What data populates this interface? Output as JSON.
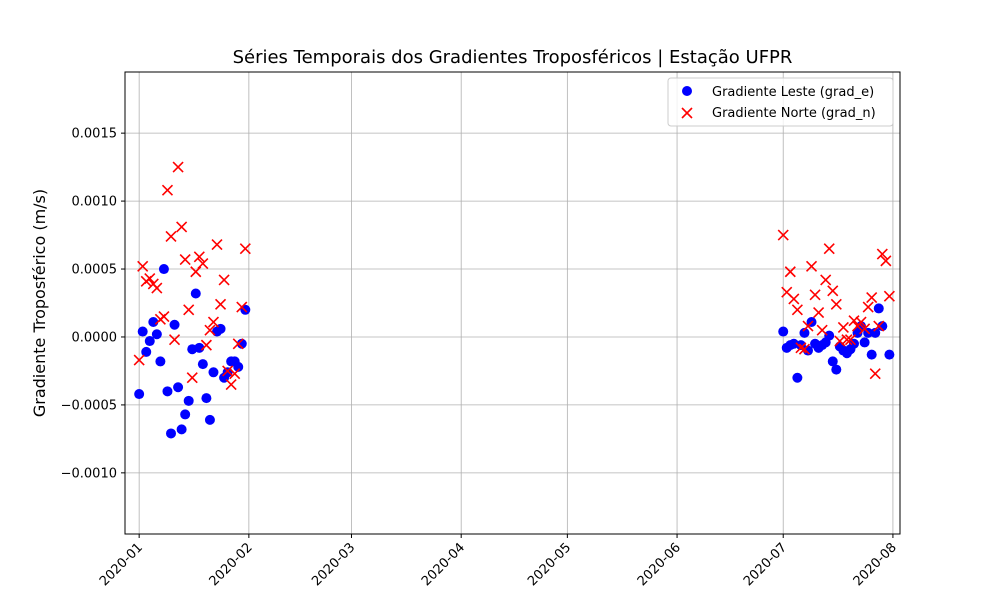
{
  "chart_data": {
    "type": "scatter",
    "title": "Séries Temporais dos Gradientes Troposféricos | Estação UFPR",
    "xlabel": "",
    "ylabel": "Gradiente Troposférico (m/s)",
    "x_range": [
      "2019-12-28",
      "2020-08-03"
    ],
    "ylim": [
      -0.00145,
      0.00195
    ],
    "x_ticks": [
      "2020-01",
      "2020-02",
      "2020-03",
      "2020-04",
      "2020-05",
      "2020-06",
      "2020-07",
      "2020-08"
    ],
    "y_ticks": [
      -0.001,
      -0.0005,
      0.0,
      0.0005,
      0.001,
      0.0015
    ],
    "y_tick_labels": [
      "−0.0010",
      "−0.0005",
      "0.0000",
      "0.0005",
      "0.0010",
      "0.0015"
    ],
    "grid": true,
    "legend_position": "top-right",
    "series": [
      {
        "name": "Gradiente Leste (grad_e)",
        "marker": "circle",
        "color": "#0000ff",
        "points": [
          [
            "2020-01-01",
            -0.00042
          ],
          [
            "2020-01-02",
            4e-05
          ],
          [
            "2020-01-03",
            -0.00011
          ],
          [
            "2020-01-04",
            -3e-05
          ],
          [
            "2020-01-05",
            0.00011
          ],
          [
            "2020-01-06",
            2e-05
          ],
          [
            "2020-01-07",
            -0.00018
          ],
          [
            "2020-01-08",
            0.0005
          ],
          [
            "2020-01-09",
            -0.0004
          ],
          [
            "2020-01-10",
            -0.00071
          ],
          [
            "2020-01-11",
            9e-05
          ],
          [
            "2020-01-12",
            -0.00037
          ],
          [
            "2020-01-13",
            -0.00068
          ],
          [
            "2020-01-14",
            -0.00057
          ],
          [
            "2020-01-15",
            -0.00047
          ],
          [
            "2020-01-16",
            -9e-05
          ],
          [
            "2020-01-17",
            0.00032
          ],
          [
            "2020-01-18",
            -8e-05
          ],
          [
            "2020-01-19",
            -0.0002
          ],
          [
            "2020-01-20",
            -0.00045
          ],
          [
            "2020-01-21",
            -0.00061
          ],
          [
            "2020-01-22",
            -0.00026
          ],
          [
            "2020-01-23",
            4e-05
          ],
          [
            "2020-01-24",
            6e-05
          ],
          [
            "2020-01-25",
            -0.0003
          ],
          [
            "2020-01-26",
            -0.00026
          ],
          [
            "2020-01-27",
            -0.00018
          ],
          [
            "2020-01-28",
            -0.00018
          ],
          [
            "2020-01-29",
            -0.00022
          ],
          [
            "2020-01-30",
            -5e-05
          ],
          [
            "2020-01-31",
            0.0002
          ],
          [
            "2020-07-01",
            4e-05
          ],
          [
            "2020-07-02",
            -8e-05
          ],
          [
            "2020-07-03",
            -6e-05
          ],
          [
            "2020-07-04",
            -5e-05
          ],
          [
            "2020-07-05",
            -0.0003
          ],
          [
            "2020-07-06",
            -6e-05
          ],
          [
            "2020-07-07",
            3e-05
          ],
          [
            "2020-07-08",
            -0.0001
          ],
          [
            "2020-07-09",
            0.00011
          ],
          [
            "2020-07-10",
            -5e-05
          ],
          [
            "2020-07-11",
            -8e-05
          ],
          [
            "2020-07-12",
            -6e-05
          ],
          [
            "2020-07-13",
            -4e-05
          ],
          [
            "2020-07-14",
            1e-05
          ],
          [
            "2020-07-15",
            -0.00018
          ],
          [
            "2020-07-16",
            -0.00024
          ],
          [
            "2020-07-17",
            -7e-05
          ],
          [
            "2020-07-18",
            -0.0001
          ],
          [
            "2020-07-19",
            -0.00012
          ],
          [
            "2020-07-20",
            -9e-05
          ],
          [
            "2020-07-21",
            -5e-05
          ],
          [
            "2020-07-22",
            3e-05
          ],
          [
            "2020-07-23",
            8e-05
          ],
          [
            "2020-07-24",
            -4e-05
          ],
          [
            "2020-07-25",
            3e-05
          ],
          [
            "2020-07-26",
            -0.00013
          ],
          [
            "2020-07-27",
            3e-05
          ],
          [
            "2020-07-28",
            0.00021
          ],
          [
            "2020-07-29",
            8e-05
          ],
          [
            "2020-07-31",
            -0.00013
          ]
        ]
      },
      {
        "name": "Gradiente Norte (grad_n)",
        "marker": "x",
        "color": "#ff0000",
        "points": [
          [
            "2020-01-01",
            -0.00017
          ],
          [
            "2020-01-02",
            0.00052
          ],
          [
            "2020-01-03",
            0.00041
          ],
          [
            "2020-01-04",
            0.00043
          ],
          [
            "2020-01-05",
            0.00039
          ],
          [
            "2020-01-06",
            0.00036
          ],
          [
            "2020-01-07",
            0.00013
          ],
          [
            "2020-01-08",
            0.00015
          ],
          [
            "2020-01-09",
            0.00108
          ],
          [
            "2020-01-10",
            0.00074
          ],
          [
            "2020-01-11",
            -2e-05
          ],
          [
            "2020-01-12",
            0.00125
          ],
          [
            "2020-01-13",
            0.00081
          ],
          [
            "2020-01-14",
            0.00057
          ],
          [
            "2020-01-15",
            0.0002
          ],
          [
            "2020-01-16",
            -0.0003
          ],
          [
            "2020-01-17",
            0.00048
          ],
          [
            "2020-01-18",
            0.00059
          ],
          [
            "2020-01-19",
            0.00054
          ],
          [
            "2020-01-20",
            -6e-05
          ],
          [
            "2020-01-21",
            5e-05
          ],
          [
            "2020-01-22",
            0.00011
          ],
          [
            "2020-01-23",
            0.00068
          ],
          [
            "2020-01-24",
            0.00024
          ],
          [
            "2020-01-25",
            0.00042
          ],
          [
            "2020-01-26",
            -0.00025
          ],
          [
            "2020-01-27",
            -0.00035
          ],
          [
            "2020-01-28",
            -0.00027
          ],
          [
            "2020-01-29",
            -5e-05
          ],
          [
            "2020-01-30",
            0.00022
          ],
          [
            "2020-01-31",
            0.00065
          ],
          [
            "2020-07-01",
            0.00075
          ],
          [
            "2020-07-02",
            0.00033
          ],
          [
            "2020-07-03",
            0.00048
          ],
          [
            "2020-07-04",
            0.00028
          ],
          [
            "2020-07-05",
            0.0002
          ],
          [
            "2020-07-06",
            -8e-05
          ],
          [
            "2020-07-07",
            -9e-05
          ],
          [
            "2020-07-08",
            8e-05
          ],
          [
            "2020-07-09",
            0.00052
          ],
          [
            "2020-07-10",
            0.00031
          ],
          [
            "2020-07-11",
            0.00018
          ],
          [
            "2020-07-12",
            5e-05
          ],
          [
            "2020-07-13",
            0.00042
          ],
          [
            "2020-07-14",
            0.00065
          ],
          [
            "2020-07-15",
            0.00034
          ],
          [
            "2020-07-16",
            0.00024
          ],
          [
            "2020-07-17",
            -3e-05
          ],
          [
            "2020-07-18",
            7e-05
          ],
          [
            "2020-07-19",
            -2e-05
          ],
          [
            "2020-07-20",
            -2e-05
          ],
          [
            "2020-07-21",
            0.00012
          ],
          [
            "2020-07-22",
            8e-05
          ],
          [
            "2020-07-23",
            0.00011
          ],
          [
            "2020-07-24",
            6e-05
          ],
          [
            "2020-07-25",
            0.00022
          ],
          [
            "2020-07-26",
            0.00029
          ],
          [
            "2020-07-27",
            -0.00027
          ],
          [
            "2020-07-28",
            8e-05
          ],
          [
            "2020-07-29",
            0.00061
          ],
          [
            "2020-07-30",
            0.00056
          ],
          [
            "2020-07-31",
            0.0003
          ]
        ]
      }
    ]
  }
}
